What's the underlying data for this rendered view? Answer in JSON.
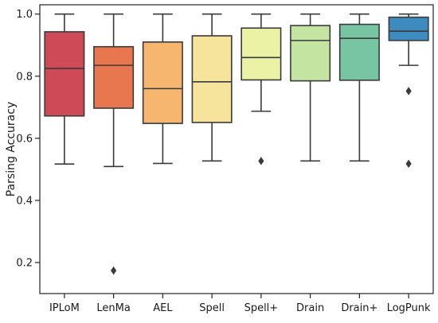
{
  "chart_data": {
    "type": "box",
    "title": "",
    "xlabel": "",
    "ylabel": "Parsing Accuracy",
    "ylim": [
      0.1,
      1.03
    ],
    "yticks": [
      "0.2",
      "0.4",
      "0.6",
      "0.8",
      "1.0"
    ],
    "grid": false,
    "categories": [
      "IPLoM",
      "LenMa",
      "AEL",
      "Spell",
      "Spell+",
      "Drain",
      "Drain+",
      "LogPunk"
    ],
    "boxes": [
      {
        "name": "IPLoM",
        "color": "#cf4a57",
        "whisker_low": 0.517,
        "q1": 0.672,
        "median": 0.825,
        "q3": 0.943,
        "whisker_high": 1.0,
        "outliers": []
      },
      {
        "name": "LenMa",
        "color": "#e8764e",
        "whisker_low": 0.509,
        "q1": 0.697,
        "median": 0.835,
        "q3": 0.895,
        "whisker_high": 1.0,
        "outliers": [
          0.174
        ]
      },
      {
        "name": "AEL",
        "color": "#f6b670",
        "whisker_low": 0.519,
        "q1": 0.648,
        "median": 0.76,
        "q3": 0.91,
        "whisker_high": 1.0,
        "outliers": []
      },
      {
        "name": "Spell",
        "color": "#f6e49d",
        "whisker_low": 0.527,
        "q1": 0.651,
        "median": 0.782,
        "q3": 0.93,
        "whisker_high": 1.0,
        "outliers": []
      },
      {
        "name": "Spell+",
        "color": "#ecf2a5",
        "whisker_low": 0.687,
        "q1": 0.788,
        "median": 0.86,
        "q3": 0.955,
        "whisker_high": 1.0,
        "outliers": [
          0.527
        ]
      },
      {
        "name": "Drain",
        "color": "#c3e5a1",
        "whisker_low": 0.527,
        "q1": 0.785,
        "median": 0.915,
        "q3": 0.963,
        "whisker_high": 1.0,
        "outliers": []
      },
      {
        "name": "Drain+",
        "color": "#78c5a3",
        "whisker_low": 0.527,
        "q1": 0.787,
        "median": 0.922,
        "q3": 0.967,
        "whisker_high": 1.0,
        "outliers": []
      },
      {
        "name": "LogPunk",
        "color": "#3d8bbf",
        "whisker_low": 0.835,
        "q1": 0.915,
        "median": 0.945,
        "q3": 0.99,
        "whisker_high": 1.0,
        "outliers": [
          0.752,
          0.518
        ]
      }
    ]
  }
}
